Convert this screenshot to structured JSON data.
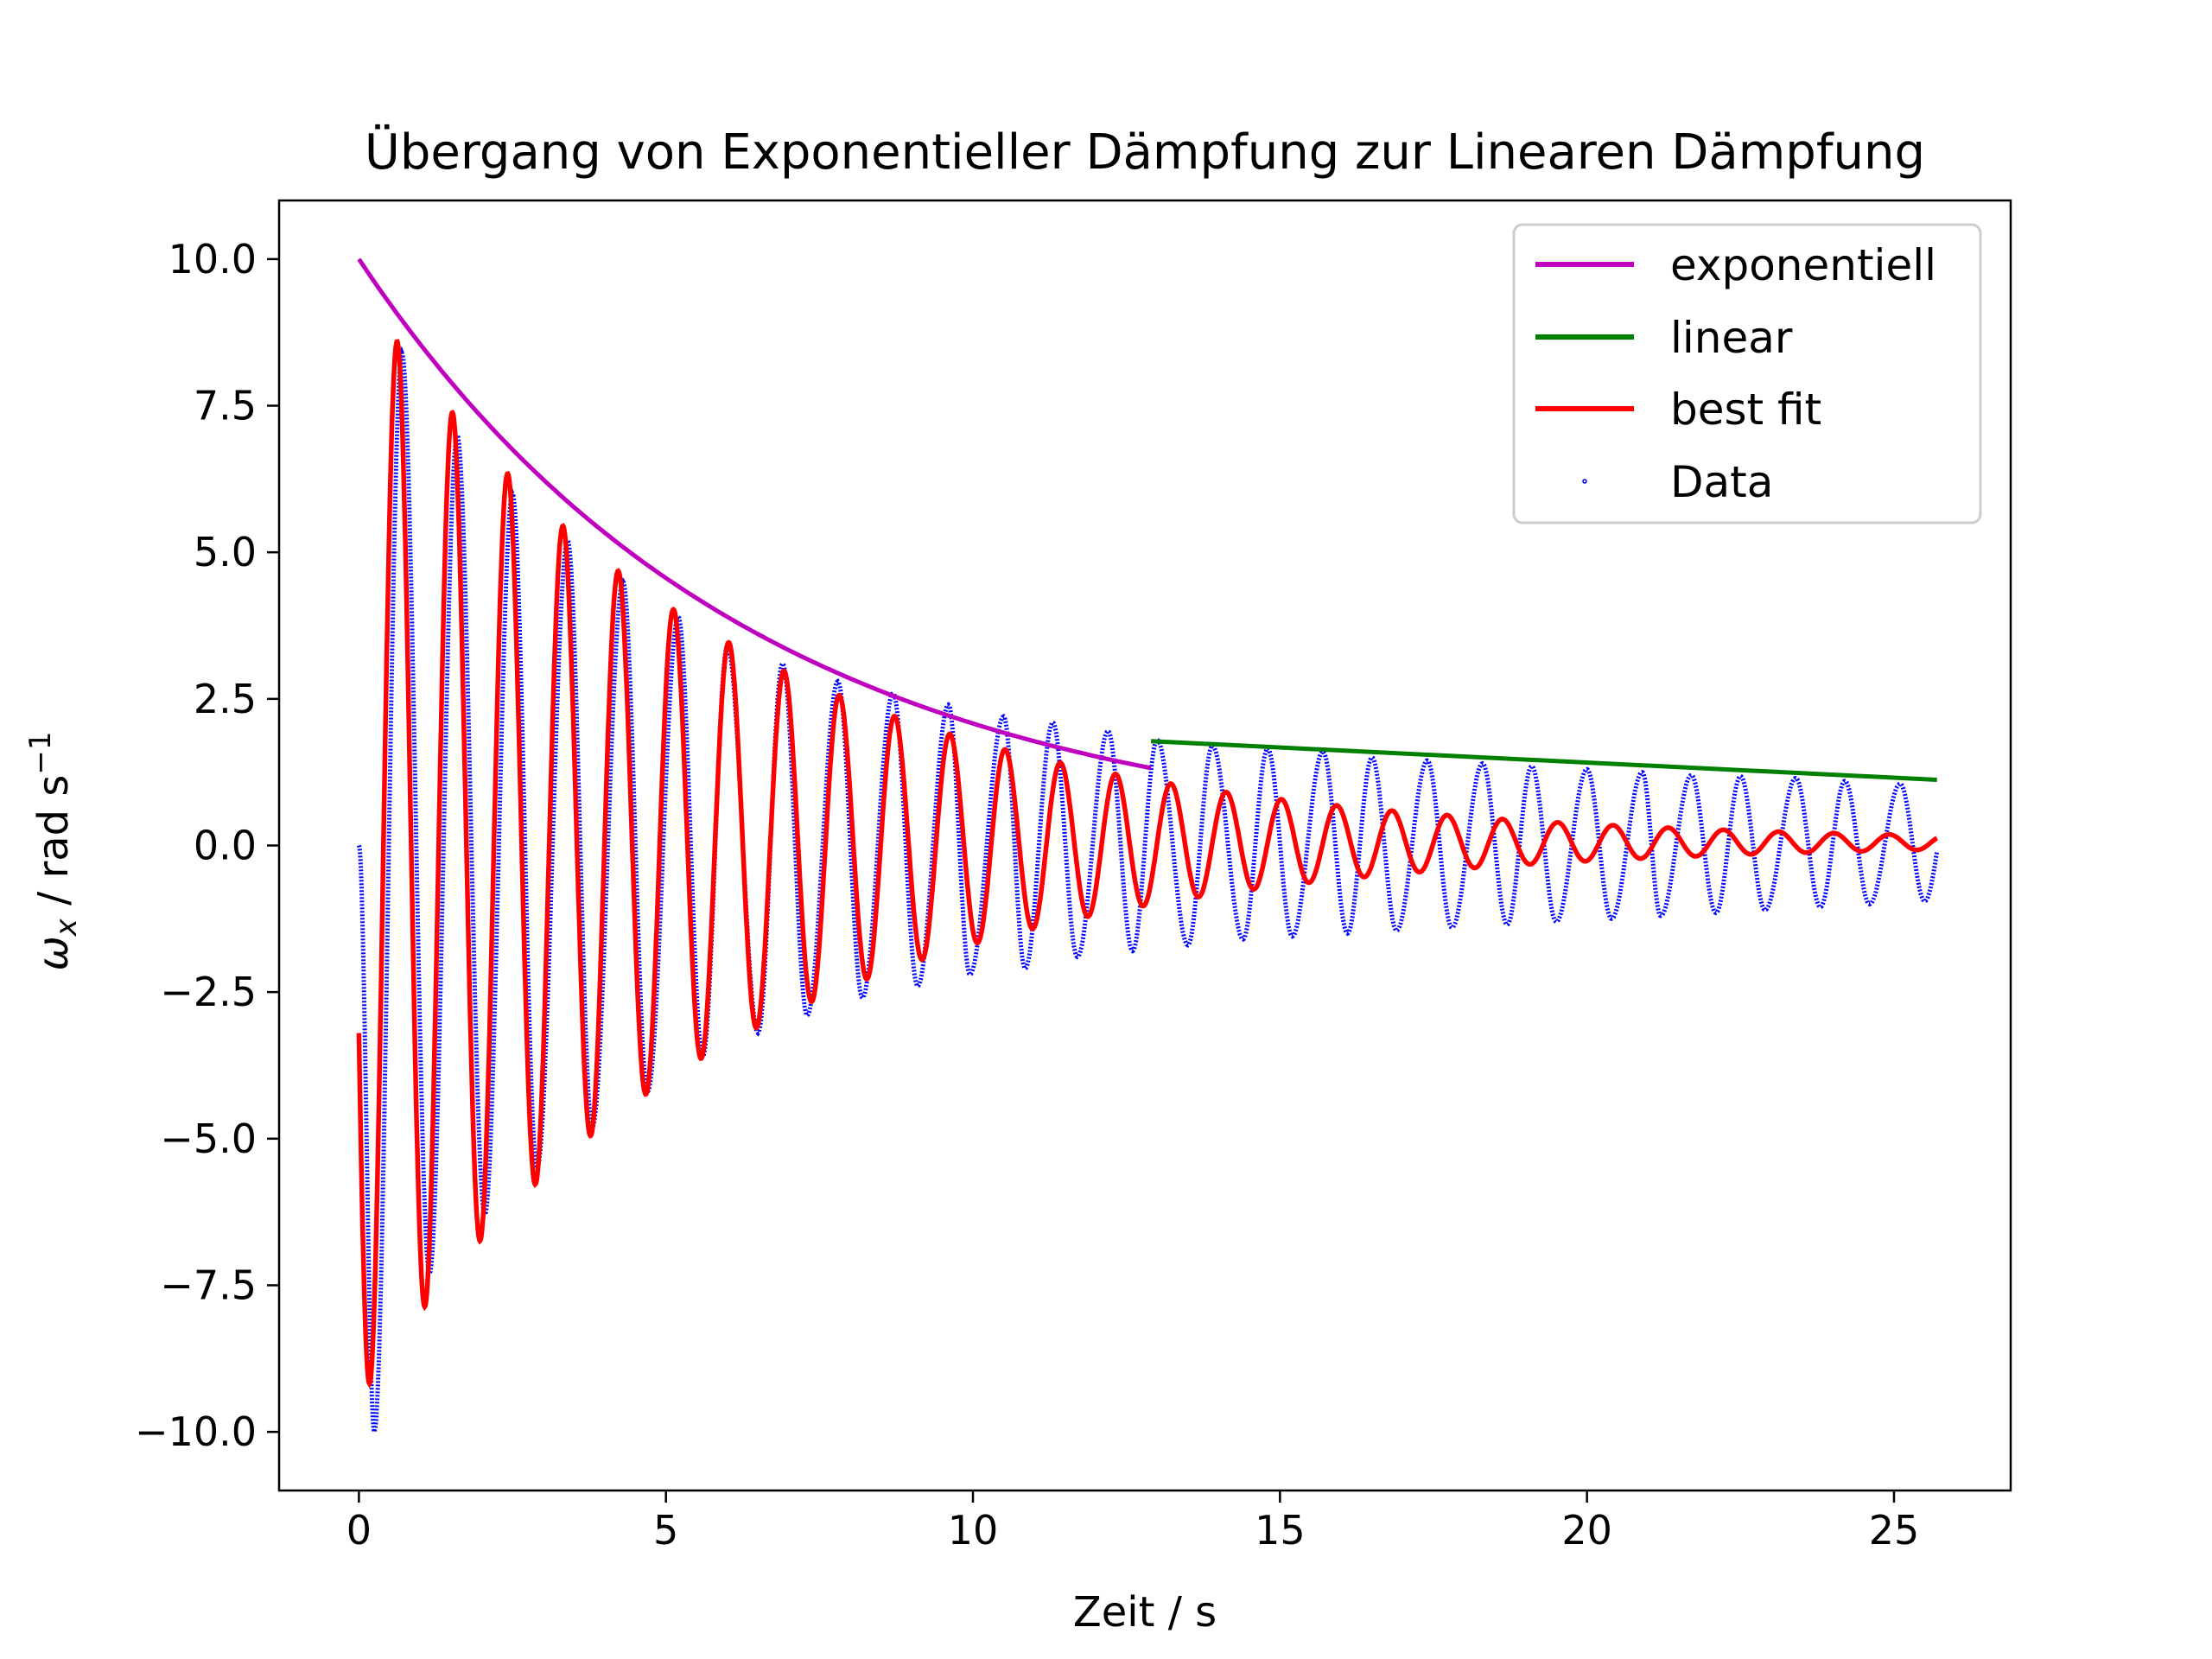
{
  "chart_data": {
    "type": "line",
    "title": "Übergang von Exponentieller Dämpfung zur Linearen Dämpfung",
    "xlabel": "Zeit / s",
    "ylabel": {
      "symbol": "ω",
      "subscript": "x",
      "unit": " / rad s",
      "superscript": "−1"
    },
    "xlim": [
      -1.3,
      26.9
    ],
    "ylim": [
      -11.0,
      11.0
    ],
    "x_ticks": [
      0,
      5,
      10,
      15,
      20,
      25
    ],
    "x_tick_labels": [
      "0",
      "5",
      "10",
      "15",
      "20",
      "25"
    ],
    "y_ticks": [
      10.0,
      7.5,
      5.0,
      2.5,
      0.0,
      -2.5,
      -5.0,
      -7.5,
      -10.0
    ],
    "y_tick_labels": [
      "10.0",
      "7.5",
      "5.0",
      "2.5",
      "0.0",
      "−2.5",
      "−5.0",
      "−7.5",
      "−10.0"
    ],
    "grid": false,
    "legend_position": "top-right",
    "series": [
      {
        "name": "exponentiell",
        "kind": "exponential",
        "color": "#bf00bf",
        "x_range": [
          0,
          12.9
        ],
        "a": 10.0,
        "b": 0.157
      },
      {
        "name": "linear",
        "kind": "line",
        "color": "#008000",
        "x": [
          12.9,
          25.7
        ],
        "y": [
          1.78,
          1.12
        ]
      },
      {
        "name": "best fit",
        "kind": "damped-oscillation",
        "color": "#ff0000",
        "x_range": [
          0,
          25.7
        ],
        "amplitude": 9.5,
        "decay": 0.17,
        "period": 0.9,
        "phase_deg": 110,
        "offset": 0.05
      },
      {
        "name": "Data",
        "kind": "scatter",
        "color": "#0000ff",
        "x_range": [
          0,
          25.7
        ],
        "peaks": [
          [
            0.7,
            8.4
          ],
          [
            1.6,
            7.0
          ],
          [
            2.5,
            6.0
          ],
          [
            3.4,
            5.2
          ],
          [
            4.3,
            4.5
          ],
          [
            5.2,
            3.9
          ],
          [
            6.0,
            3.4
          ],
          [
            6.9,
            3.1
          ],
          [
            7.8,
            2.8
          ],
          [
            8.7,
            2.6
          ],
          [
            9.6,
            2.4
          ],
          [
            10.5,
            2.2
          ],
          [
            11.3,
            2.1
          ],
          [
            12.2,
            1.95
          ],
          [
            13.0,
            1.8
          ],
          [
            13.9,
            1.7
          ],
          [
            14.8,
            1.65
          ],
          [
            15.7,
            1.6
          ],
          [
            16.5,
            1.5
          ],
          [
            17.4,
            1.45
          ],
          [
            18.3,
            1.4
          ],
          [
            19.1,
            1.35
          ],
          [
            20.0,
            1.3
          ],
          [
            20.9,
            1.25
          ],
          [
            21.7,
            1.2
          ],
          [
            22.5,
            1.18
          ],
          [
            23.4,
            1.15
          ],
          [
            24.2,
            1.1
          ],
          [
            25.1,
            1.05
          ]
        ],
        "troughs": [
          [
            0.25,
            -10.0
          ],
          [
            1.15,
            -7.3
          ],
          [
            2.05,
            -6.3
          ],
          [
            2.9,
            -5.5
          ],
          [
            3.8,
            -4.8
          ],
          [
            4.7,
            -4.2
          ],
          [
            5.6,
            -3.6
          ],
          [
            6.5,
            -3.2
          ],
          [
            7.3,
            -2.9
          ],
          [
            8.2,
            -2.6
          ],
          [
            9.1,
            -2.4
          ],
          [
            9.95,
            -2.2
          ],
          [
            10.85,
            -2.1
          ],
          [
            11.7,
            -1.9
          ],
          [
            12.6,
            -1.8
          ],
          [
            13.5,
            -1.7
          ],
          [
            14.4,
            -1.6
          ],
          [
            15.2,
            -1.55
          ],
          [
            16.1,
            -1.5
          ],
          [
            16.9,
            -1.45
          ],
          [
            17.8,
            -1.4
          ],
          [
            18.7,
            -1.35
          ],
          [
            19.5,
            -1.3
          ],
          [
            20.4,
            -1.25
          ],
          [
            21.2,
            -1.2
          ],
          [
            22.1,
            -1.15
          ],
          [
            22.9,
            -1.1
          ],
          [
            23.8,
            -1.05
          ],
          [
            24.6,
            -1.0
          ],
          [
            25.5,
            -0.95
          ]
        ]
      }
    ]
  }
}
